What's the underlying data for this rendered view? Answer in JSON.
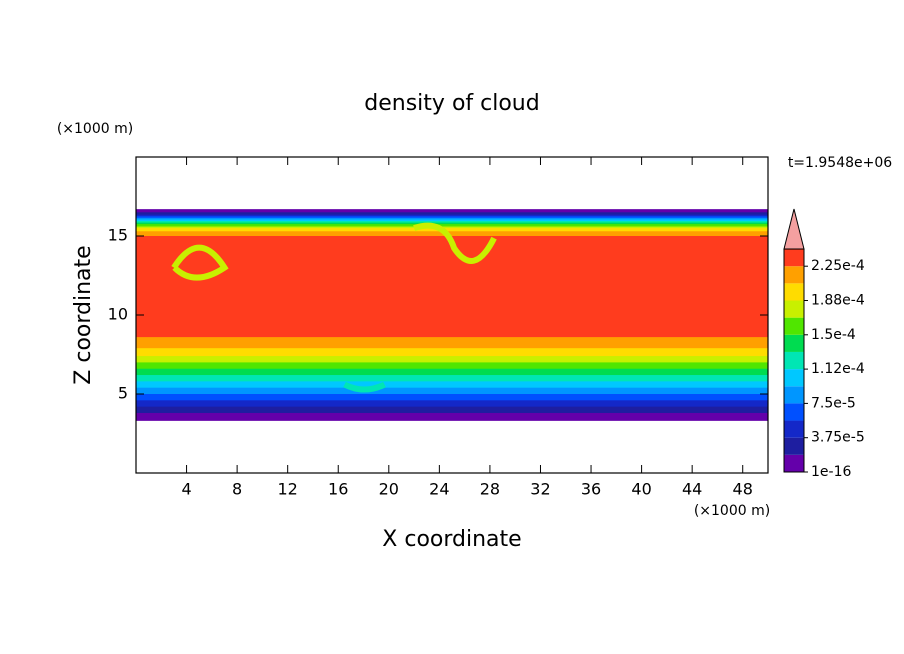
{
  "chart_data": {
    "type": "contour",
    "title": "density of cloud",
    "x_label": "X coordinate",
    "y_label": "Z coordinate",
    "x_unit": "(×1000 m)",
    "y_unit": "(×1000 m)",
    "time_label": "t=1.9548e+06",
    "xlim": [
      0,
      50
    ],
    "ylim": [
      0,
      20
    ],
    "xticks": [
      4,
      8,
      12,
      16,
      20,
      24,
      28,
      32,
      36,
      40,
      44,
      48
    ],
    "yticks": [
      5,
      10,
      15
    ],
    "colorbar": {
      "levels": [
        1e-16,
        {
          "value": 3.75e-05,
          "label": "3.75e-5"
        },
        {
          "value": 7.5e-05,
          "label": "7.5e-5"
        },
        {
          "value": 0.000112,
          "label": "1.12e-4"
        },
        {
          "value": 0.00015,
          "label": "1.5e-4"
        },
        {
          "value": 0.000188,
          "label": "1.88e-4"
        },
        {
          "value": 0.000225,
          "label": "2.25e-4"
        }
      ],
      "colors": [
        "#6400aa",
        "#1e1ea0",
        "#1428c8",
        "#0050ff",
        "#0096ff",
        "#00c8ff",
        "#00e6b4",
        "#00dc50",
        "#50e600",
        "#c8f000",
        "#ffdc00",
        "#ffa000",
        "#ff3c1e"
      ],
      "over_color": "#f4a0a0"
    }
  }
}
